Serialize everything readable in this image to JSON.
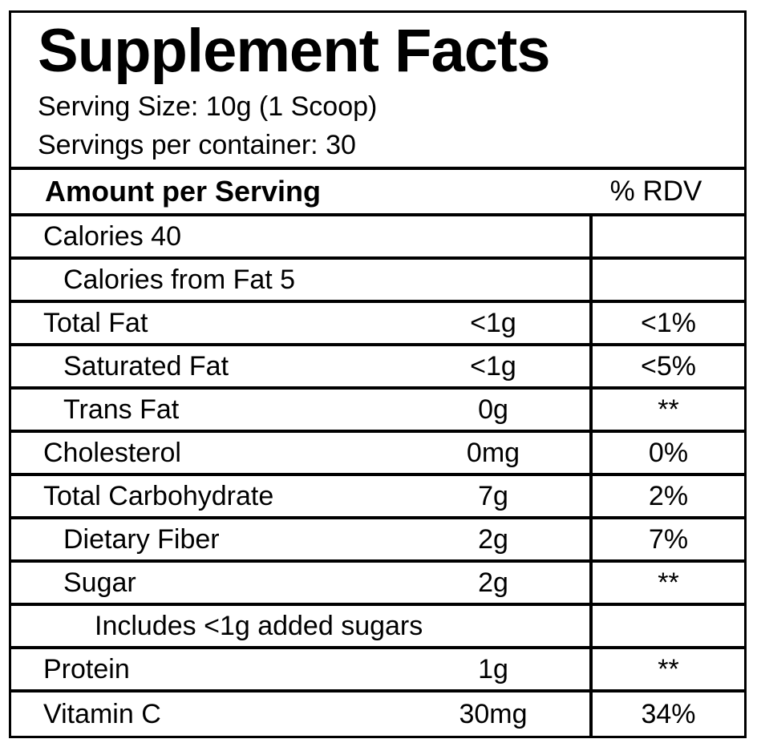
{
  "label": {
    "title": "Supplement Facts",
    "serving_size": "Serving Size: 10g (1 Scoop)",
    "servings_per_container": "Servings per container: 30"
  },
  "header": {
    "amount_label": "Amount per Serving",
    "rdv_label": "% RDV"
  },
  "rows": [
    {
      "name": "Calories 40",
      "amount": "",
      "rdv": ""
    },
    {
      "name": "Calories from Fat 5",
      "amount": "",
      "rdv": ""
    },
    {
      "name": "Total Fat",
      "amount": "<1g",
      "rdv": "<1%"
    },
    {
      "name": "Saturated Fat",
      "amount": "<1g",
      "rdv": "<5%"
    },
    {
      "name": "Trans Fat",
      "amount": "0g",
      "rdv": "**"
    },
    {
      "name": "Cholesterol",
      "amount": "0mg",
      "rdv": "0%"
    },
    {
      "name": "Total Carbohydrate",
      "amount": "7g",
      "rdv": "2%"
    },
    {
      "name": "Dietary Fiber",
      "amount": "2g",
      "rdv": "7%"
    },
    {
      "name": "Sugar",
      "amount": "2g",
      "rdv": "**"
    },
    {
      "name": "Includes <1g added sugars",
      "amount": "",
      "rdv": ""
    },
    {
      "name": "Protein",
      "amount": "1g",
      "rdv": "**"
    },
    {
      "name": "Vitamin C",
      "amount": "30mg",
      "rdv": "34%"
    }
  ],
  "colors": {
    "border": "#000000",
    "background": "#ffffff",
    "text": "#000000"
  }
}
